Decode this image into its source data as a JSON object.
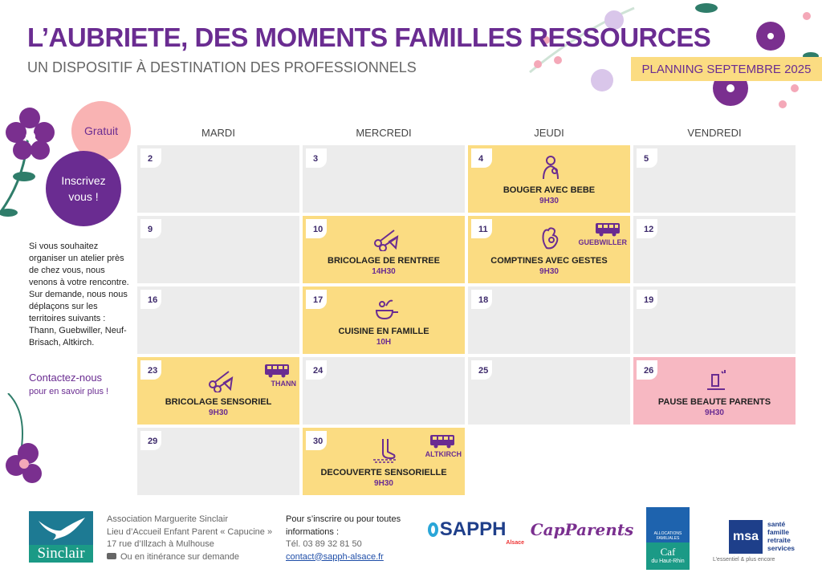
{
  "header": {
    "title": "L’AUBRIETE, DES MOMENTS FAMILLES RESSOURCES",
    "subtitle": "UN DISPOSITIF À DESTINATION DES PROFESSIONNELS",
    "planning": "PLANNING SEPTEMBRE 2025"
  },
  "badges": {
    "free": "Gratuit",
    "register": "Inscrivez vous !"
  },
  "side": {
    "text": "Si vous souhaitez organiser un atelier près de chez vous, nous venons à votre rencontre. Sur demande, nous nous déplaçons sur les territoires suivants : Thann, Guebwiller, Neuf-Brisach, Altkirch.",
    "contact": "Contactez-nous",
    "contact_sub": "pour en savoir plus !"
  },
  "days": [
    "MARDI",
    "MERCREDI",
    "JEUDI",
    "VENDREDI"
  ],
  "colors": {
    "grey": "#ececec",
    "yellow": "#fbdc82",
    "pink": "#f7b8c2",
    "purple": "#6a2c91"
  },
  "cells": [
    {
      "day": "2",
      "bg": "grey"
    },
    {
      "day": "3",
      "bg": "grey"
    },
    {
      "day": "4",
      "bg": "yellow",
      "icon": "mother-baby-icon",
      "title": "BOUGER AVEC BEBE",
      "time": "9H30"
    },
    {
      "day": "5",
      "bg": "grey"
    },
    {
      "day": "9",
      "bg": "grey"
    },
    {
      "day": "10",
      "bg": "yellow",
      "icon": "scissors-craft-icon",
      "title": "BRICOLAGE DE RENTREE",
      "time": "14H30"
    },
    {
      "day": "11",
      "bg": "yellow",
      "icon": "hand-gesture-icon",
      "title": "COMPTINES AVEC GESTES",
      "time": "9H30",
      "bus": true,
      "location": "GUEBWILLER"
    },
    {
      "day": "12",
      "bg": "grey"
    },
    {
      "day": "16",
      "bg": "grey"
    },
    {
      "day": "17",
      "bg": "yellow",
      "icon": "cooking-pan-icon",
      "title": "CUISINE EN FAMILLE",
      "time": "10H"
    },
    {
      "day": "18",
      "bg": "grey"
    },
    {
      "day": "19",
      "bg": "grey"
    },
    {
      "day": "23",
      "bg": "yellow",
      "icon": "scissors-craft-icon",
      "title": "BRICOLAGE SENSORIEL",
      "time": "9H30",
      "bus": true,
      "location": "THANN"
    },
    {
      "day": "24",
      "bg": "grey"
    },
    {
      "day": "25",
      "bg": "grey"
    },
    {
      "day": "26",
      "bg": "pink",
      "icon": "beauty-icon",
      "title": "PAUSE BEAUTE PARENTS",
      "time": "9H30"
    },
    {
      "day": "29",
      "bg": "grey"
    },
    {
      "day": "30",
      "bg": "yellow",
      "icon": "foot-sensory-icon",
      "title": "DECOUVERTE SENSORIELLE",
      "time": "9H30",
      "bus": true,
      "location": "ALTKIRCH"
    }
  ],
  "footer": {
    "sinclair": "Sinclair",
    "address": [
      "Association Marguerite Sinclair",
      "Lieu d’Accueil Enfant Parent « Capucine »",
      "17 rue d’Illzach à Mulhouse",
      "Ou en itinérance sur demande"
    ],
    "contact_title": "Pour s’inscrire ou pour toutes informations :",
    "phone": "Tél. 03 89 32 81 50",
    "email": "contact@sapph-alsace.fr",
    "logos": {
      "sapph": "SAPPH",
      "sapph_sub": "Alsace",
      "capparents": "CapParents",
      "caf_top": "ALLOCATIONS FAMILIALES",
      "caf": "Caf",
      "caf_sub": "du Haut-Rhin",
      "msa": "msa",
      "msa_lines": [
        "santé",
        "famille",
        "retraite",
        "services"
      ],
      "msa_tag": "L’essentiel & plus encore"
    }
  }
}
